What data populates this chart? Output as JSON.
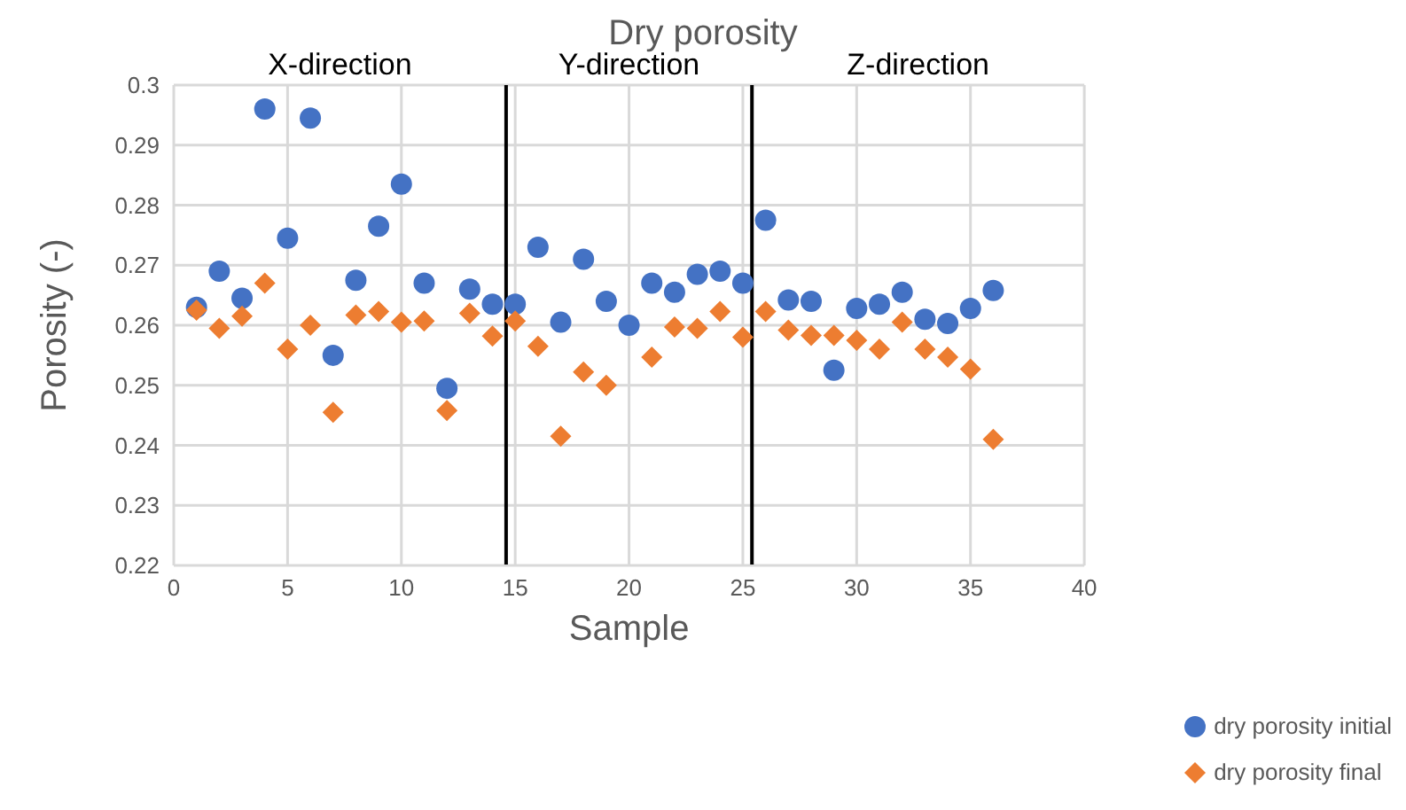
{
  "chart_data": {
    "type": "scatter",
    "title": "Dry porosity",
    "xlabel": "Sample",
    "ylabel": "Porosity (-)",
    "xlim": [
      0,
      40
    ],
    "xticks": [
      0,
      5,
      10,
      15,
      20,
      25,
      30,
      35,
      40
    ],
    "ylim": [
      0.22,
      0.3
    ],
    "yticks": [
      0.22,
      0.23,
      0.24,
      0.25,
      0.26,
      0.27,
      0.28,
      0.29,
      0.3
    ],
    "grid": true,
    "legend": "bottom right",
    "series": [
      {
        "name": "dry porosity initial",
        "color": "#4472c4",
        "marker": "circle",
        "x": [
          1,
          2,
          3,
          4,
          5,
          6,
          7,
          8,
          9,
          10,
          11,
          12,
          13,
          14,
          15,
          16,
          17,
          18,
          19,
          20,
          21,
          22,
          23,
          24,
          25,
          26,
          27,
          28,
          29,
          30,
          31,
          32,
          33,
          34,
          35,
          36
        ],
        "values": [
          0.263,
          0.269,
          0.2645,
          0.296,
          0.2745,
          0.2945,
          0.255,
          0.2675,
          0.2765,
          0.2835,
          0.267,
          0.2495,
          0.266,
          0.2635,
          0.2635,
          0.273,
          0.2605,
          0.271,
          0.264,
          0.26,
          0.267,
          0.2655,
          0.2685,
          0.269,
          0.267,
          0.2775,
          0.2642,
          0.264,
          0.2525,
          0.2628,
          0.2635,
          0.2655,
          0.261,
          0.2603,
          0.2628,
          0.2658
        ]
      },
      {
        "name": "dry porosity final",
        "color": "#ed7d31",
        "marker": "diamond",
        "x": [
          1,
          2,
          3,
          4,
          5,
          6,
          7,
          8,
          9,
          10,
          11,
          12,
          13,
          14,
          15,
          16,
          17,
          18,
          19,
          21,
          22,
          23,
          24,
          25,
          26,
          27,
          28,
          29,
          30,
          31,
          32,
          33,
          34,
          35,
          36
        ],
        "values": [
          0.2625,
          0.2595,
          0.2615,
          0.267,
          0.256,
          0.26,
          0.2455,
          0.2617,
          0.2623,
          0.2605,
          0.2607,
          0.2458,
          0.262,
          0.2582,
          0.2607,
          0.2565,
          0.2415,
          0.2522,
          0.25,
          0.2547,
          0.2597,
          0.2595,
          0.2623,
          0.258,
          0.2623,
          0.2592,
          0.2583,
          0.2583,
          0.2575,
          0.256,
          0.2605,
          0.256,
          0.2547,
          0.2527,
          0.241
        ]
      }
    ],
    "ref_lines": [
      {
        "axis": "x",
        "value": 14.6,
        "color": "#000000"
      },
      {
        "axis": "x",
        "value": 25.4,
        "color": "#000000"
      }
    ],
    "annotations": [
      "X-direction",
      "Y-direction",
      "Z-direction"
    ]
  }
}
